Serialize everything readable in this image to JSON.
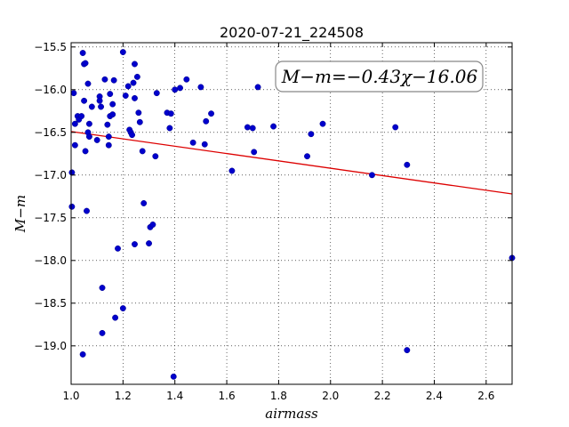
{
  "chart_data": {
    "type": "scatter",
    "title": "2020-07-21_224508",
    "xlabel": "airmass",
    "ylabel": "M−m",
    "xlim": [
      1.0,
      2.7
    ],
    "ylim": [
      -19.45,
      -15.45
    ],
    "y_inverted": true,
    "grid": true,
    "x_ticks": [
      1.0,
      1.2,
      1.4,
      1.6,
      1.8,
      2.0,
      2.2,
      2.4,
      2.6
    ],
    "y_ticks": [
      -15.5,
      -16.0,
      -16.5,
      -17.0,
      -17.5,
      -18.0,
      -18.5,
      -19.0
    ],
    "x_tick_labels": [
      "1.0",
      "1.2",
      "1.4",
      "1.6",
      "1.8",
      "2.0",
      "2.2",
      "2.4",
      "2.6"
    ],
    "y_tick_labels": [
      "−15.5",
      "−16.0",
      "−16.5",
      "−17.0",
      "−17.5",
      "−18.0",
      "−18.5",
      "−19.0"
    ],
    "annotation": "M−m=−0.43χ−16.06",
    "marker_color": "#0000cc",
    "fit_color": "#dd0000",
    "fit": {
      "slope": -0.43,
      "intercept": -16.06
    },
    "points": [
      [
        1.003,
        -16.97
      ],
      [
        1.003,
        -17.37
      ],
      [
        1.01,
        -16.04
      ],
      [
        1.015,
        -16.4
      ],
      [
        1.015,
        -16.65
      ],
      [
        1.025,
        -16.31
      ],
      [
        1.03,
        -16.35
      ],
      [
        1.04,
        -16.31
      ],
      [
        1.045,
        -15.57
      ],
      [
        1.05,
        -15.7
      ],
      [
        1.055,
        -15.69
      ],
      [
        1.05,
        -16.13
      ],
      [
        1.055,
        -16.72
      ],
      [
        1.06,
        -17.42
      ],
      [
        1.045,
        -19.1
      ],
      [
        1.065,
        -15.93
      ],
      [
        1.065,
        -16.5
      ],
      [
        1.07,
        -16.55
      ],
      [
        1.07,
        -16.4
      ],
      [
        1.08,
        -16.2
      ],
      [
        1.1,
        -16.59
      ],
      [
        1.11,
        -16.08
      ],
      [
        1.11,
        -16.13
      ],
      [
        1.115,
        -16.2
      ],
      [
        1.12,
        -18.32
      ],
      [
        1.12,
        -18.85
      ],
      [
        1.13,
        -15.88
      ],
      [
        1.14,
        -16.41
      ],
      [
        1.145,
        -16.55
      ],
      [
        1.145,
        -16.65
      ],
      [
        1.15,
        -16.05
      ],
      [
        1.15,
        -16.31
      ],
      [
        1.16,
        -16.29
      ],
      [
        1.16,
        -16.17
      ],
      [
        1.165,
        -15.89
      ],
      [
        1.17,
        -18.67
      ],
      [
        1.18,
        -17.86
      ],
      [
        1.2,
        -15.56
      ],
      [
        1.2,
        -18.56
      ],
      [
        1.21,
        -16.07
      ],
      [
        1.22,
        -15.96
      ],
      [
        1.225,
        -16.47
      ],
      [
        1.23,
        -16.5
      ],
      [
        1.235,
        -16.53
      ],
      [
        1.24,
        -15.92
      ],
      [
        1.245,
        -15.7
      ],
      [
        1.245,
        -16.1
      ],
      [
        1.245,
        -17.81
      ],
      [
        1.255,
        -15.85
      ],
      [
        1.26,
        -16.27
      ],
      [
        1.265,
        -16.38
      ],
      [
        1.275,
        -16.72
      ],
      [
        1.28,
        -17.33
      ],
      [
        1.3,
        -17.8
      ],
      [
        1.305,
        -17.61
      ],
      [
        1.315,
        -17.58
      ],
      [
        1.325,
        -16.78
      ],
      [
        1.33,
        -16.04
      ],
      [
        1.37,
        -16.27
      ],
      [
        1.38,
        -16.45
      ],
      [
        1.385,
        -16.28
      ],
      [
        1.395,
        -19.36
      ],
      [
        1.4,
        -16.0
      ],
      [
        1.42,
        -15.98
      ],
      [
        1.445,
        -15.88
      ],
      [
        1.47,
        -16.62
      ],
      [
        1.5,
        -15.97
      ],
      [
        1.515,
        -16.64
      ],
      [
        1.52,
        -16.37
      ],
      [
        1.54,
        -16.28
      ],
      [
        1.62,
        -16.95
      ],
      [
        1.68,
        -16.44
      ],
      [
        1.7,
        -16.45
      ],
      [
        1.705,
        -16.73
      ],
      [
        1.72,
        -15.97
      ],
      [
        1.78,
        -16.43
      ],
      [
        1.91,
        -16.78
      ],
      [
        1.925,
        -16.52
      ],
      [
        1.97,
        -16.4
      ],
      [
        2.16,
        -17.0
      ],
      [
        2.25,
        -16.44
      ],
      [
        2.295,
        -16.88
      ],
      [
        2.295,
        -19.05
      ],
      [
        2.7,
        -17.97
      ]
    ]
  }
}
